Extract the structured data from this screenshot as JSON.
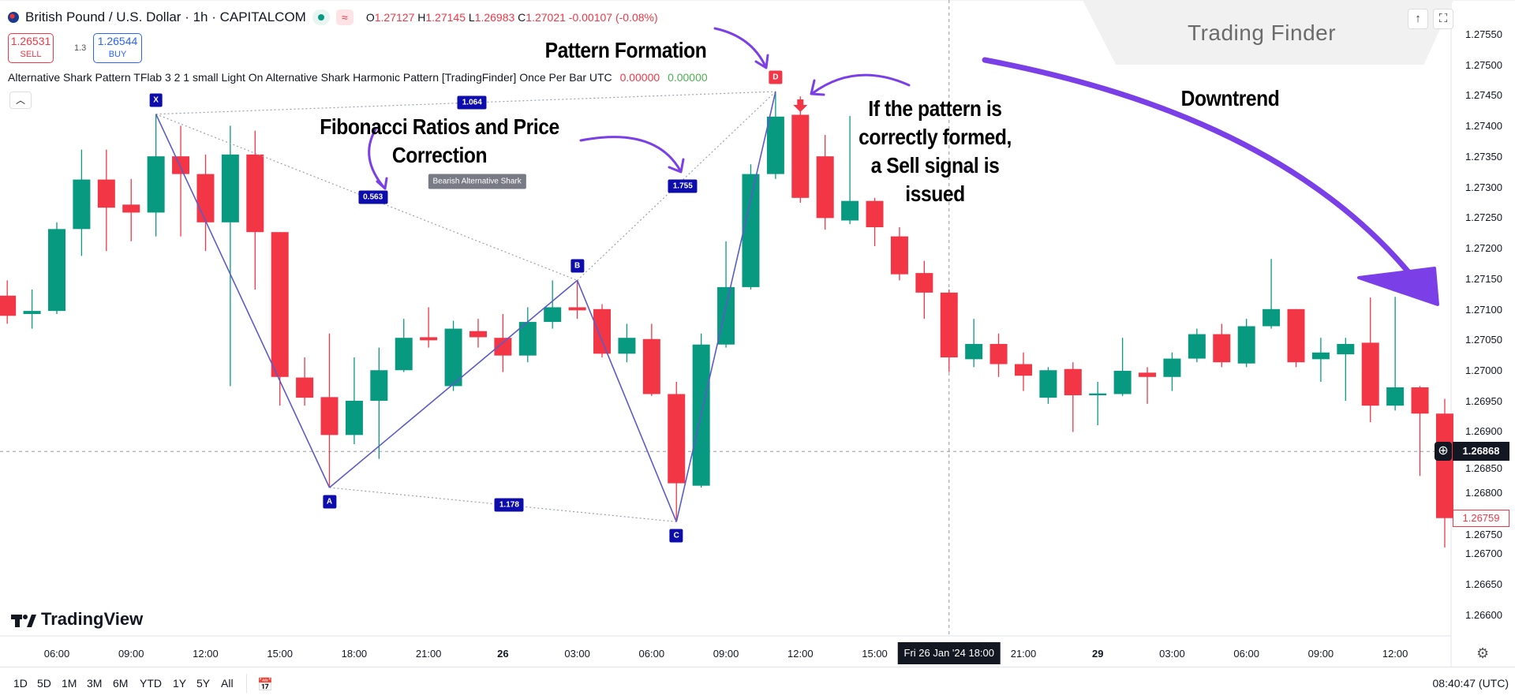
{
  "header": {
    "symbol": "British Pound / U.S. Dollar · 1h · CAPITALCOM",
    "open_label": "O",
    "open": "1.27127",
    "high_label": "H",
    "high": "1.27145",
    "low_label": "L",
    "low": "1.26983",
    "close_label": "C",
    "close": "1.27021",
    "change": "-0.00107 (-0.08%)",
    "sell_price": "1.26531",
    "sell_label": "SELL",
    "spread": "1.3",
    "buy_price": "1.26544",
    "buy_label": "BUY"
  },
  "indicator": {
    "text": "Alternative Shark Pattern TFlab 3 2 1 small Light On Alternative Shark Harmonic Pattern [TradingFinder] Once Per Bar UTC",
    "value1": "0.00000",
    "value2": "0.00000"
  },
  "watermark": {
    "brand": "Trading Finder",
    "brand_color": "#22e5f0"
  },
  "annotations": {
    "pattern_formation": "Pattern Formation",
    "fibonacci": [
      "Fibonacci Ratios and Price",
      "Correction"
    ],
    "sell_signal": [
      "If the pattern is",
      "correctly formed,",
      "a Sell signal is",
      "issued"
    ],
    "downtrend": "Downtrend",
    "arrow_color": "#7b3fe8"
  },
  "colors": {
    "up": "#089981",
    "down": "#f23645",
    "pattern": "#0d0dab",
    "signal": "#f23645"
  },
  "chart_data": {
    "type": "candlestick",
    "price_ticks": [
      "1.27550",
      "1.27500",
      "1.27450",
      "1.27400",
      "1.27350",
      "1.27300",
      "1.27250",
      "1.27200",
      "1.27150",
      "1.27100",
      "1.27050",
      "1.27000",
      "1.26950",
      "1.26900",
      "1.26850",
      "1.26800",
      "1.26750",
      "1.26700",
      "1.26650",
      "1.26600"
    ],
    "ylim": [
      1.2658,
      1.276
    ],
    "time_ticks": [
      {
        "label": "06:00",
        "t": "01-25 06:00"
      },
      {
        "label": "09:00",
        "t": "01-25 09:00"
      },
      {
        "label": "12:00",
        "t": "01-25 12:00"
      },
      {
        "label": "15:00",
        "t": "01-25 15:00"
      },
      {
        "label": "18:00",
        "t": "01-25 18:00"
      },
      {
        "label": "21:00",
        "t": "01-25 21:00"
      },
      {
        "label": "26",
        "t": "01-26 00:00"
      },
      {
        "label": "03:00",
        "t": "01-26 03:00"
      },
      {
        "label": "06:00",
        "t": "01-26 06:00"
      },
      {
        "label": "09:00",
        "t": "01-26 09:00"
      },
      {
        "label": "12:00",
        "t": "01-26 12:00"
      },
      {
        "label": "15:00",
        "t": "01-26 15:00"
      },
      {
        "label": "21:00",
        "t": "01-26 21:00"
      },
      {
        "label": "29",
        "t": "01-29 00:00"
      },
      {
        "label": "03:00",
        "t": "01-29 03:00"
      },
      {
        "label": "06:00",
        "t": "01-29 06:00"
      },
      {
        "label": "09:00",
        "t": "01-29 09:00"
      },
      {
        "label": "12:00",
        "t": "01-29 12:00"
      }
    ],
    "columns": [
      "t",
      "open",
      "high",
      "low",
      "close"
    ],
    "candles": [
      [
        "01-25 04:00",
        1.27123,
        1.27148,
        1.27077,
        1.2709
      ],
      [
        "01-25 05:00",
        1.27093,
        1.27133,
        1.27069,
        1.27098
      ],
      [
        "01-25 06:00",
        1.27098,
        1.27243,
        1.27093,
        1.27232
      ],
      [
        "01-25 07:00",
        1.27232,
        1.27362,
        1.27188,
        1.27313
      ],
      [
        "01-25 08:00",
        1.27313,
        1.27362,
        1.27196,
        1.27267
      ],
      [
        "01-25 09:00",
        1.27272,
        1.27314,
        1.27212,
        1.27259
      ],
      [
        "01-25 10:00",
        1.27259,
        1.2742,
        1.2722,
        1.27351
      ],
      [
        "01-25 11:00",
        1.27351,
        1.27401,
        1.2722,
        1.27322
      ],
      [
        "01-25 12:00",
        1.27322,
        1.27354,
        1.27196,
        1.27243
      ],
      [
        "01-25 13:00",
        1.27243,
        1.27401,
        1.26975,
        1.27354
      ],
      [
        "01-25 14:00",
        1.27354,
        1.27393,
        1.27133,
        1.27227
      ],
      [
        "01-25 15:00",
        1.27227,
        1.27227,
        1.26943,
        1.2699
      ],
      [
        "01-25 16:00",
        1.26989,
        1.27022,
        1.26943,
        1.26956
      ],
      [
        "01-25 17:00",
        1.26957,
        1.27061,
        1.26809,
        1.26895
      ],
      [
        "01-25 18:00",
        1.26895,
        1.27022,
        1.2688,
        1.26951
      ],
      [
        "01-25 19:00",
        1.26951,
        1.27038,
        1.26856,
        1.27001
      ],
      [
        "01-25 20:00",
        1.27001,
        1.27085,
        1.26998,
        1.27054
      ],
      [
        "01-25 21:00",
        1.27055,
        1.27104,
        1.27038,
        1.2705
      ],
      [
        "01-25 22:00",
        1.26975,
        1.27082,
        1.26967,
        1.27069
      ],
      [
        "01-25 23:00",
        1.27065,
        1.27085,
        1.27038,
        1.27055
      ],
      [
        "01-26 00:00",
        1.27054,
        1.27093,
        1.26998,
        1.27025
      ],
      [
        "01-26 01:00",
        1.27025,
        1.27104,
        1.27014,
        1.2708
      ],
      [
        "01-26 02:00",
        1.2708,
        1.27148,
        1.27069,
        1.27104
      ],
      [
        "01-26 03:00",
        1.27104,
        1.27148,
        1.27085,
        1.27099
      ],
      [
        "01-26 04:00",
        1.27101,
        1.27109,
        1.27022,
        1.27028
      ],
      [
        "01-26 05:00",
        1.27028,
        1.27077,
        1.27014,
        1.27054
      ],
      [
        "01-26 06:00",
        1.27052,
        1.27077,
        1.26959,
        1.26962
      ],
      [
        "01-26 07:00",
        1.26962,
        1.26982,
        1.26753,
        1.26816
      ],
      [
        "01-26 08:00",
        1.26812,
        1.27061,
        1.26809,
        1.27043
      ],
      [
        "01-26 09:00",
        1.27043,
        1.27212,
        1.27038,
        1.27137
      ],
      [
        "01-26 10:00",
        1.27137,
        1.27338,
        1.27133,
        1.27322
      ],
      [
        "01-26 11:00",
        1.27322,
        1.27457,
        1.27314,
        1.27416
      ],
      [
        "01-26 12:00",
        1.27419,
        1.27449,
        1.27275,
        1.27283
      ],
      [
        "01-26 13:00",
        1.27351,
        1.27386,
        1.27231,
        1.2725
      ],
      [
        "01-26 14:00",
        1.27246,
        1.27417,
        1.2724,
        1.27278
      ],
      [
        "01-26 15:00",
        1.27278,
        1.27283,
        1.27204,
        1.27235
      ],
      [
        "01-26 16:00",
        1.2722,
        1.27235,
        1.27148,
        1.27158
      ],
      [
        "01-26 17:00",
        1.2716,
        1.2718,
        1.27085,
        1.27128
      ],
      [
        "01-26 18:00",
        1.27128,
        1.27133,
        1.26998,
        1.27022
      ],
      [
        "01-26 19:00",
        1.27019,
        1.27085,
        1.27006,
        1.27044
      ],
      [
        "01-26 20:00",
        1.27044,
        1.27061,
        1.2699,
        1.27011
      ],
      [
        "01-26 21:00",
        1.27011,
        1.2703,
        1.26967,
        1.26992
      ],
      [
        "01-26 22:00",
        1.26956,
        1.27006,
        1.26946,
        1.27001
      ],
      [
        "01-26 23:00",
        1.27003,
        1.27014,
        1.269,
        1.2696
      ],
      [
        "01-29 00:00",
        1.2696,
        1.26982,
        1.26911,
        1.26963
      ],
      [
        "01-29 01:00",
        1.26962,
        1.27054,
        1.26959,
        1.27
      ],
      [
        "01-29 02:00",
        1.26997,
        1.27006,
        1.26946,
        1.2699
      ],
      [
        "01-29 03:00",
        1.2699,
        1.2703,
        1.26967,
        1.2702
      ],
      [
        "01-29 04:00",
        1.2702,
        1.27069,
        1.27014,
        1.2706
      ],
      [
        "01-29 05:00",
        1.2706,
        1.27077,
        1.27006,
        1.27014
      ],
      [
        "01-29 06:00",
        1.27012,
        1.27085,
        1.27006,
        1.27073
      ],
      [
        "01-29 07:00",
        1.27073,
        1.27183,
        1.27069,
        1.27101
      ],
      [
        "01-29 08:00",
        1.27101,
        1.27101,
        1.27006,
        1.27014
      ],
      [
        "01-29 09:00",
        1.27019,
        1.27054,
        1.26982,
        1.2703
      ],
      [
        "01-29 10:00",
        1.27027,
        1.27054,
        1.26951,
        1.27044
      ],
      [
        "01-29 11:00",
        1.27046,
        1.2712,
        1.26916,
        1.26943
      ],
      [
        "01-29 12:00",
        1.26943,
        1.27121,
        1.26935,
        1.26973
      ],
      [
        "01-29 13:00",
        1.26973,
        1.26975,
        1.26828,
        1.2693
      ],
      [
        "01-29 14:00",
        1.2693,
        1.26954,
        1.26711,
        1.26759
      ]
    ],
    "pattern": {
      "name": "Bearish Alternative Shark",
      "points": [
        {
          "label": "X",
          "t": "01-25 10:00",
          "price": 1.2742
        },
        {
          "label": "A",
          "t": "01-25 17:00",
          "price": 1.26809
        },
        {
          "label": "B",
          "t": "01-26 03:00",
          "price": 1.27148
        },
        {
          "label": "C",
          "t": "01-26 07:00",
          "price": 1.26753
        },
        {
          "label": "D",
          "t": "01-26 11:00",
          "price": 1.27457
        }
      ],
      "ratios": [
        {
          "from": "X",
          "to": "D",
          "value": "1.064"
        },
        {
          "from": "X",
          "to": "B",
          "value": "0.563"
        },
        {
          "from": "B",
          "to": "D",
          "value": "1.755"
        },
        {
          "from": "A",
          "to": "C",
          "value": "1.178"
        }
      ],
      "sell_signal_t": "01-26 12:00"
    },
    "crosshair": {
      "time_label": "Fri 26 Jan '24",
      "time_hour": "18:00",
      "t": "01-26 18:00",
      "price": "1.26868"
    },
    "last_price": "1.26759"
  },
  "bottom": {
    "ranges": [
      "1D",
      "5D",
      "1M",
      "3M",
      "6M",
      "YTD",
      "1Y",
      "5Y",
      "All"
    ],
    "clock": "08:40:47 (UTC)",
    "logo": "TradingView"
  }
}
